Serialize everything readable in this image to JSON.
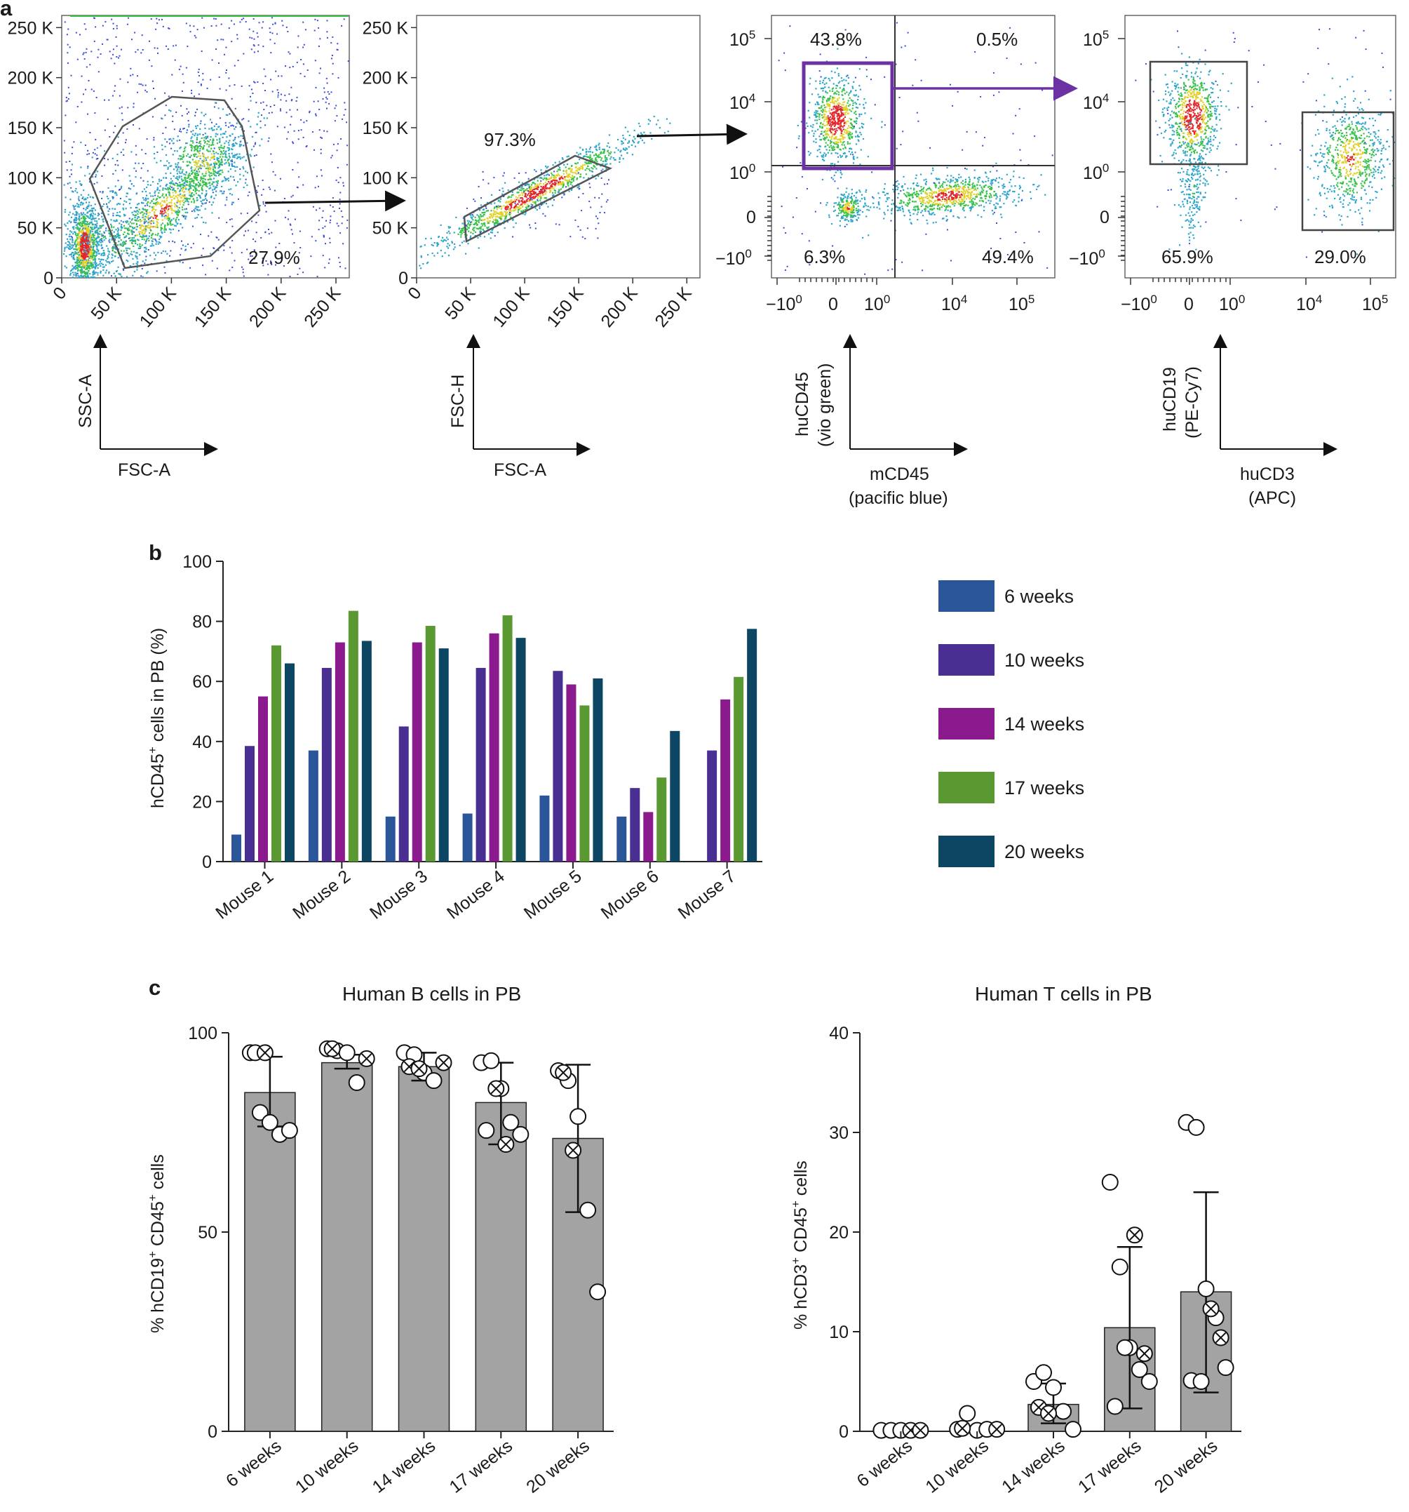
{
  "panel_labels": {
    "a": "a",
    "b": "b",
    "c": "c"
  },
  "colors": {
    "6 weeks": "#2a5599",
    "10 weeks": "#4a2f93",
    "14 weeks": "#8b1a8e",
    "17 weeks": "#5a9832",
    "20 weeks": "#0d4662",
    "gate_purple": "#6c31a3",
    "bar_gray": "#a3a3a3"
  },
  "chart_data": [
    {
      "id": "a1",
      "type": "scatter",
      "title": "",
      "xlabel": "FSC-A",
      "ylabel": "SSC-A",
      "x_ticks": [
        "0",
        "50 K",
        "100 K",
        "150 K",
        "200 K",
        "250 K"
      ],
      "y_ticks": [
        "0",
        "50 K",
        "100 K",
        "150 K",
        "200 K",
        "250 K"
      ],
      "xlim": [
        0,
        262144
      ],
      "ylim": [
        0,
        262144
      ],
      "annotations": [
        "27.9%"
      ]
    },
    {
      "id": "a2",
      "type": "scatter",
      "title": "",
      "xlabel": "FSC-A",
      "ylabel": "FSC-H",
      "x_ticks": [
        "0",
        "50 K",
        "100 K",
        "150 K",
        "200 K",
        "250 K"
      ],
      "y_ticks": [
        "0",
        "50 K",
        "100 K",
        "150 K",
        "200 K",
        "250 K"
      ],
      "xlim": [
        0,
        262144
      ],
      "ylim": [
        0,
        262144
      ],
      "annotations": [
        "97.3%"
      ]
    },
    {
      "id": "a3",
      "type": "scatter",
      "title": "",
      "xlabel_line1": "mCD45",
      "xlabel_line2": "(pacific blue)",
      "ylabel_line1": "huCD45",
      "ylabel_line2": "(vio green)",
      "x_ticks": [
        "−10",
        "0",
        "10",
        "10",
        "10"
      ],
      "x_tick_exps": [
        "0",
        "",
        "0",
        "4",
        "5"
      ],
      "y_ticks": [
        "−10",
        "0",
        "10",
        "10",
        "10"
      ],
      "y_tick_exps": [
        "0",
        "",
        "0",
        "4",
        "5"
      ],
      "quadrants": [
        "43.8%",
        "0.5%",
        "6.3%",
        "49.4%"
      ]
    },
    {
      "id": "a4",
      "type": "scatter",
      "title": "",
      "xlabel_line1": "huCD3",
      "xlabel_line2": "(APC)",
      "ylabel_line1": "huCD19",
      "ylabel_line2": "(PE-Cy7)",
      "x_ticks": [
        "−10",
        "0",
        "10",
        "10",
        "10"
      ],
      "x_tick_exps": [
        "0",
        "",
        "0",
        "4",
        "5"
      ],
      "y_ticks": [
        "−10",
        "0",
        "10",
        "10",
        "10"
      ],
      "y_tick_exps": [
        "0",
        "",
        "0",
        "4",
        "5"
      ],
      "annotations": [
        "65.9%",
        "29.0%"
      ]
    },
    {
      "id": "b",
      "type": "bar",
      "title": "",
      "xlabel": "",
      "ylabel_pre": "hCD45",
      "ylabel_sup": "+",
      "ylabel_post": " cells in PB (%)",
      "categories": [
        "Mouse 1",
        "Mouse 2",
        "Mouse 3",
        "Mouse 4",
        "Mouse 5",
        "Mouse 6",
        "Mouse 7"
      ],
      "series": [
        {
          "name": "6 weeks",
          "values": [
            9,
            37,
            15,
            16,
            22,
            15,
            null
          ]
        },
        {
          "name": "10 weeks",
          "values": [
            38.5,
            64.5,
            45,
            64.5,
            63.5,
            24.5,
            37
          ]
        },
        {
          "name": "14 weeks",
          "values": [
            55,
            73,
            73,
            76,
            59,
            16.5,
            54
          ]
        },
        {
          "name": "17 weeks",
          "values": [
            72,
            83.5,
            78.5,
            82,
            52,
            28,
            61.5
          ]
        },
        {
          "name": "20 weeks",
          "values": [
            66,
            73.5,
            71,
            74.5,
            61,
            43.5,
            77.5
          ]
        }
      ],
      "y_ticks": [
        "0",
        "20",
        "40",
        "60",
        "80",
        "100"
      ],
      "ylim": [
        0,
        100
      ],
      "legend": "right"
    },
    {
      "id": "c1",
      "type": "bar",
      "title": "Human B cells in PB",
      "ylabel_pre": "% hCD19",
      "ylabel_sup1": "+",
      "ylabel_mid": " CD45",
      "ylabel_sup2": "+",
      "ylabel_post": " cells",
      "categories": [
        "6 weeks",
        "10 weeks",
        "14 weeks",
        "17 weeks",
        "20 weeks"
      ],
      "values": [
        85,
        92.5,
        91.5,
        82.5,
        73.5
      ],
      "error_upper": [
        94,
        94.5,
        95,
        92.5,
        92
      ],
      "error_lower": [
        76.5,
        91,
        88,
        72,
        55
      ],
      "points_open": [
        [
          95,
          80,
          77.5,
          74.5,
          75.5,
          95
        ],
        [
          96,
          95.5,
          95,
          87.5
        ],
        [
          95,
          94.5,
          90,
          88
        ],
        [
          92.5,
          93,
          86,
          77.5,
          74.5,
          75.5
        ],
        [
          90.5,
          88,
          79,
          55.5,
          35
        ]
      ],
      "points_crossed": [
        [
          95
        ],
        [
          93.5,
          96
        ],
        [
          92.5,
          91.5,
          91
        ],
        [
          86,
          72
        ],
        [
          90,
          70.5
        ]
      ],
      "y_ticks": [
        "0",
        "50",
        "100"
      ],
      "ylim": [
        0,
        100
      ]
    },
    {
      "id": "c2",
      "type": "bar",
      "title": "Human T cells in PB",
      "ylabel_pre": "% hCD3",
      "ylabel_sup1": "+",
      "ylabel_mid": " CD45",
      "ylabel_sup2": "+",
      "ylabel_post": " cells",
      "categories": [
        "6 weeks",
        "10 weeks",
        "14 weeks",
        "17 weeks",
        "20 weeks"
      ],
      "values": [
        0.1,
        0.3,
        2.7,
        10.4,
        14
      ],
      "error_upper": [
        0.15,
        0.5,
        4.8,
        18.5,
        24
      ],
      "error_lower": [
        0.05,
        0.1,
        0.8,
        2.3,
        3.9
      ],
      "points_open": [
        [
          0.1,
          0.1,
          0.1
        ],
        [
          0.2,
          1.8,
          0.1,
          0.2
        ],
        [
          5,
          5.9,
          4.4,
          2,
          0.2
        ],
        [
          25,
          16.5,
          8.4,
          6.2,
          5,
          2.5,
          8.4
        ],
        [
          31,
          30.5,
          14.3,
          11.4,
          6.4,
          5.1,
          5
        ]
      ],
      "points_crossed": [
        [
          0.1,
          0.1
        ],
        [
          0.2,
          0.3
        ],
        [
          2.4,
          1.8
        ],
        [
          19.7,
          7.8
        ],
        [
          12.3,
          9.4
        ]
      ],
      "y_ticks": [
        "0",
        "10",
        "20",
        "30",
        "40"
      ],
      "ylim": [
        0,
        40
      ]
    }
  ]
}
